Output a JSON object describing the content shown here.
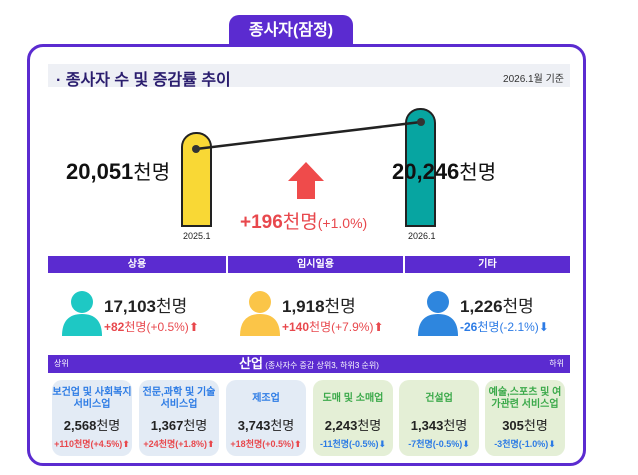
{
  "tab": "종사자(잠정)",
  "title": "· 종사자 수 및 증감률 추이",
  "basis": "2026.1월 기준",
  "unit": "천명",
  "trend": {
    "prev": {
      "label": "2025.1",
      "value": "20,051",
      "color": "#f9d835"
    },
    "curr": {
      "label": "2026.1",
      "value": "20,246",
      "color": "#07a5a1"
    },
    "change": "+196",
    "change_pct": "(+1.0%)"
  },
  "types": [
    {
      "label": "상용",
      "value": "17,103",
      "change": "+82",
      "pct": "(+0.5%)",
      "dir": "up",
      "color": "#1ec8c4"
    },
    {
      "label": "임시일용",
      "value": "1,918",
      "change": "+140",
      "pct": "(+7.9%)",
      "dir": "up",
      "color": "#fbc548"
    },
    {
      "label": "기타",
      "value": "1,226",
      "change": "-26",
      "pct": "(-2.1%)",
      "dir": "down",
      "color": "#2e86de"
    }
  ],
  "industry": {
    "left": "상위",
    "title": "산업",
    "sub": "(종사자수 증감 상위3, 하위3 순위)",
    "right": "하위",
    "cards": [
      {
        "name": "보건업 및 사회복지 서비스업",
        "value": "2,568",
        "change": "+110천명(+4.5%)",
        "dir": "up"
      },
      {
        "name": "전문,과학 및 기술 서비스업",
        "value": "1,367",
        "change": "+24천명(+1.8%)",
        "dir": "up"
      },
      {
        "name": "제조업",
        "value": "3,743",
        "change": "+18천명(+0.5%)",
        "dir": "up"
      },
      {
        "name": "도매 및 소매업",
        "value": "2,243",
        "change": "-11천명(-0.5%)",
        "dir": "down"
      },
      {
        "name": "건설업",
        "value": "1,343",
        "change": "-7천명(-0.5%)",
        "dir": "down"
      },
      {
        "name": "예술,스포츠 및 여가관련 서비스업",
        "value": "305",
        "change": "-3천명(-1.0%)",
        "dir": "down"
      }
    ]
  }
}
